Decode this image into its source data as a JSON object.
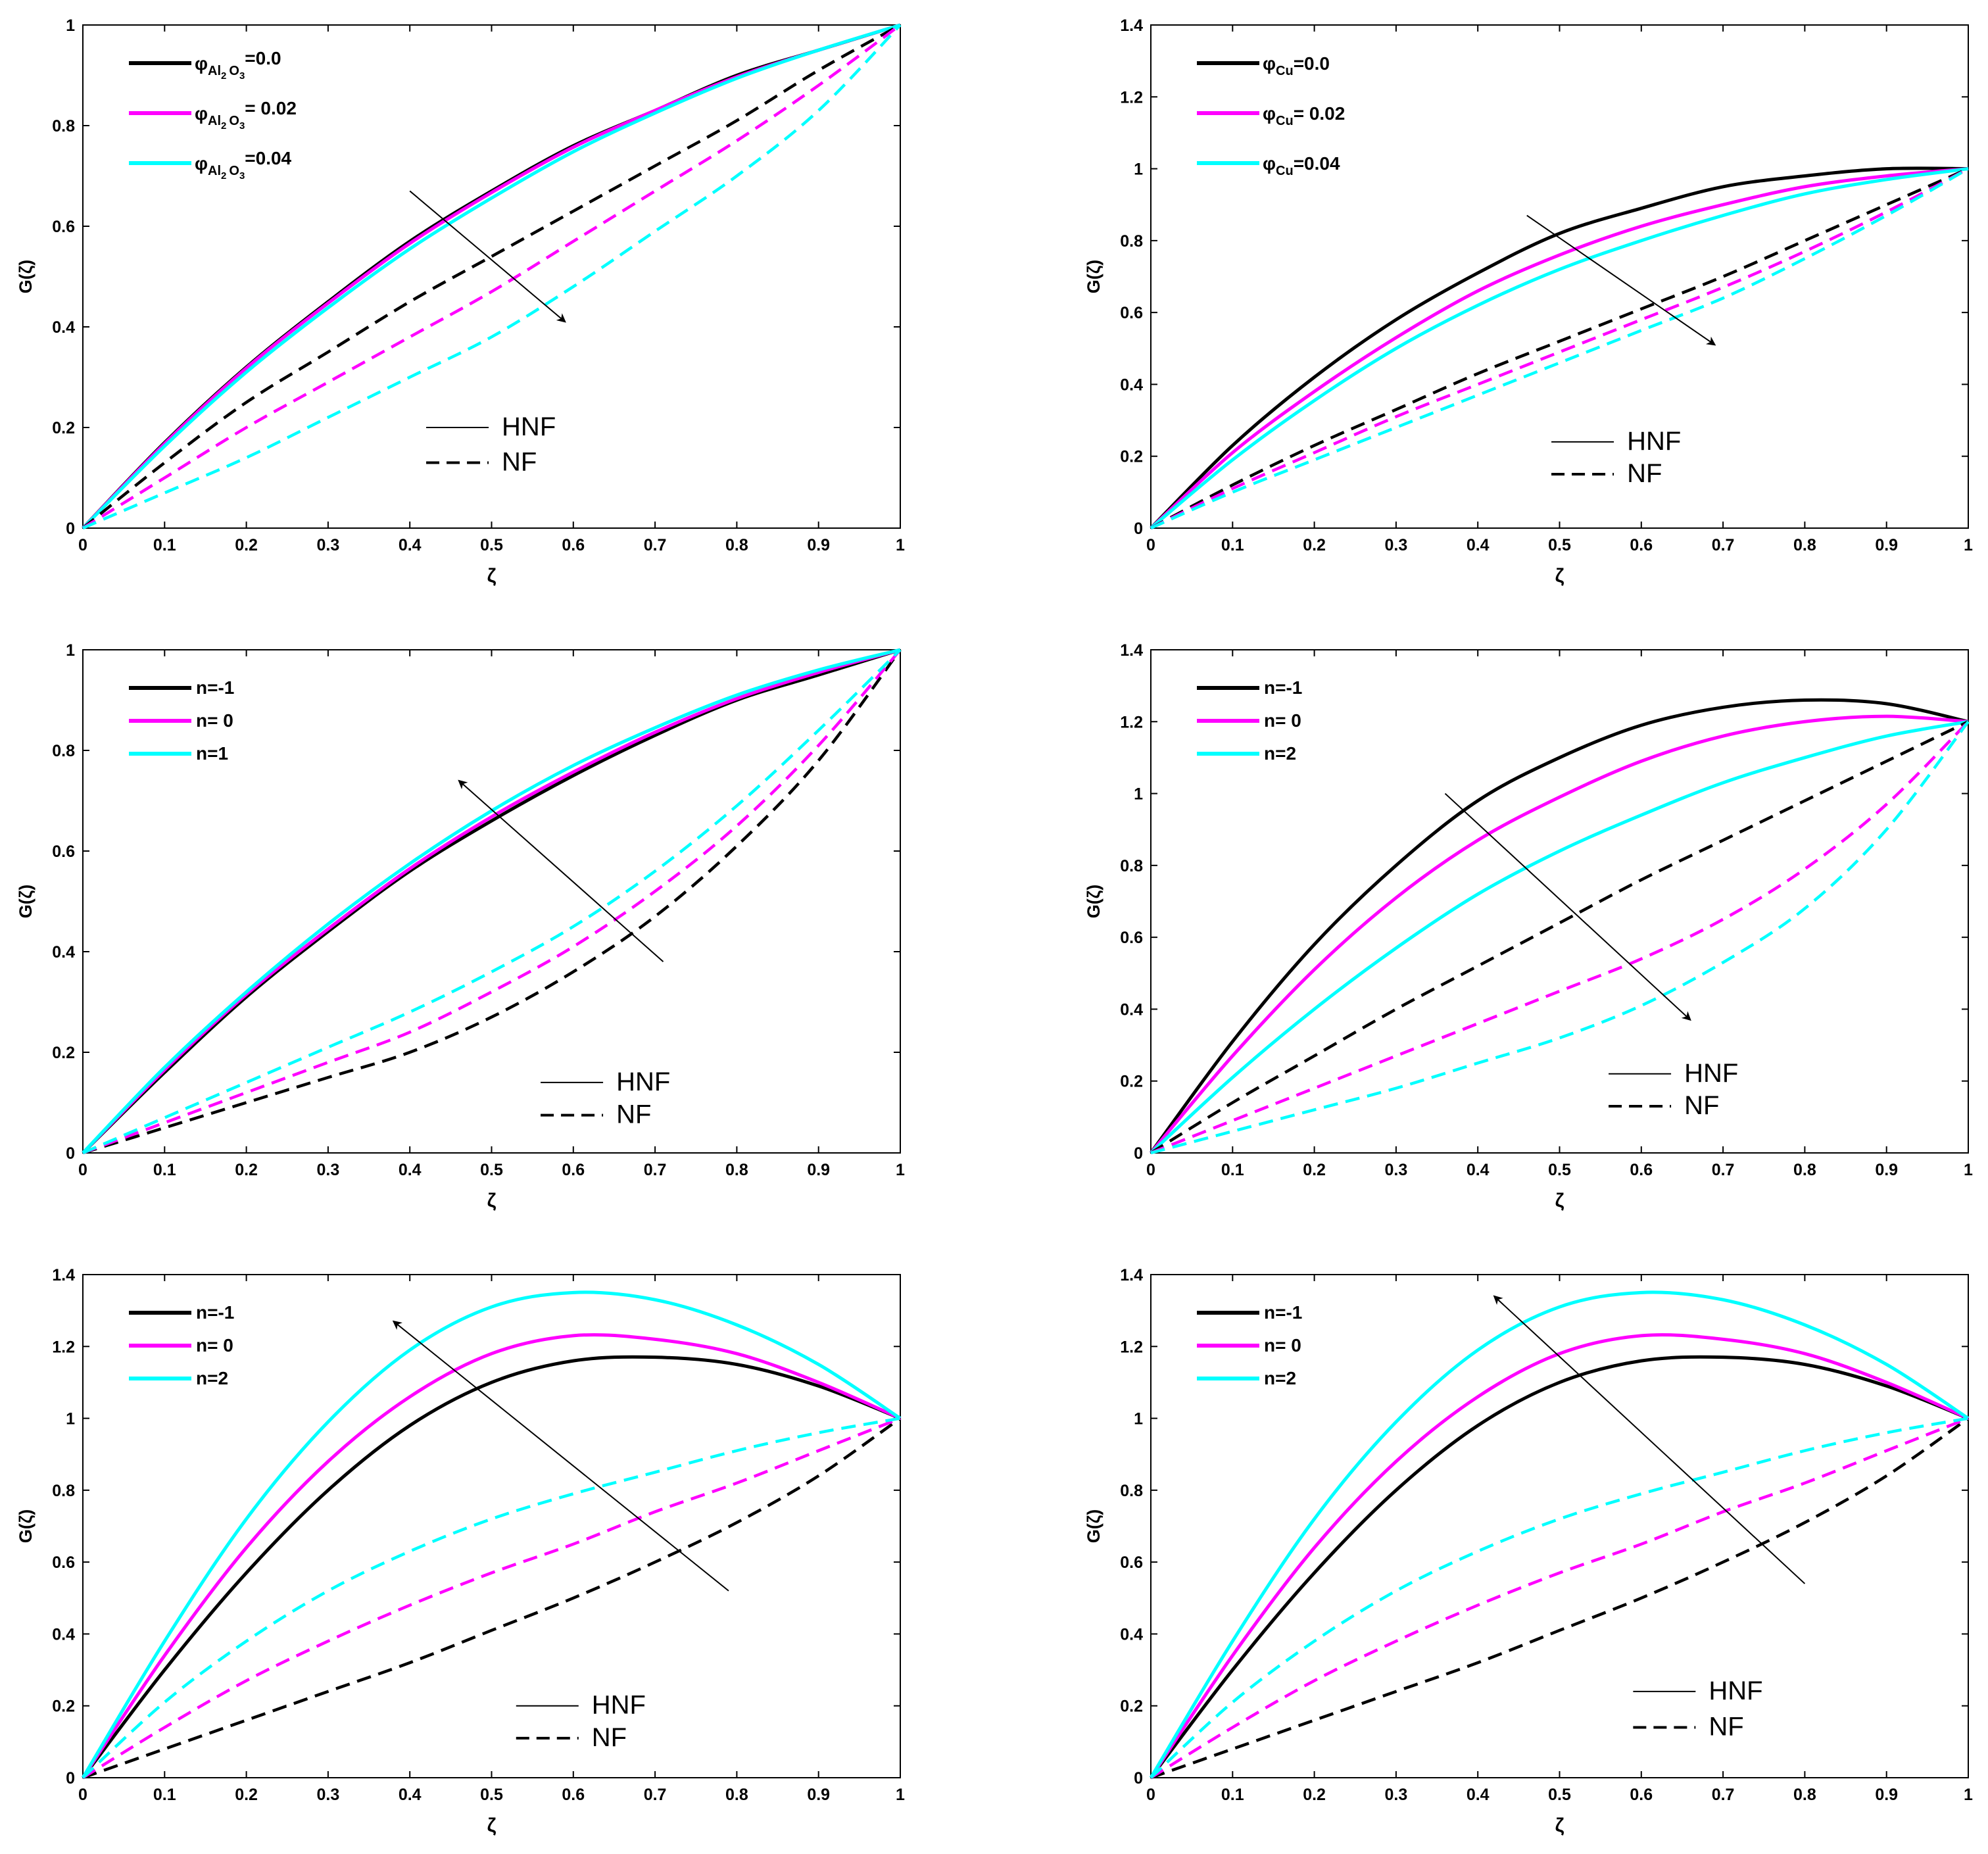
{
  "colors": {
    "black": "#000000",
    "magenta": "#ff00ff",
    "cyan": "#00ffff"
  },
  "common": {
    "xlabel": "ζ",
    "ylabel": "G(ζ)",
    "xticks": [
      "0",
      "0.1",
      "0.2",
      "0.3",
      "0.4",
      "0.5",
      "0.6",
      "0.7",
      "0.8",
      "0.9",
      "1"
    ],
    "hnf_label": "HNF",
    "nf_label": "NF"
  },
  "chart_data": [
    {
      "type": "line",
      "xlim": [
        0,
        1
      ],
      "ylim": [
        0,
        1
      ],
      "yticks": [
        "0",
        "0.2",
        "0.4",
        "0.6",
        "0.8",
        "1"
      ],
      "x": [
        0,
        0.1,
        0.2,
        0.3,
        0.4,
        0.5,
        0.6,
        0.7,
        0.8,
        0.9,
        1
      ],
      "legend": [
        {
          "prefix": "φ",
          "sub": "Al",
          "sub2": "2",
          "sub3": "O",
          "sub4": "3",
          "value": "=0.0",
          "color": "#000000"
        },
        {
          "prefix": "φ",
          "sub": "Al",
          "sub2": "2",
          "sub3": "O",
          "sub4": "3",
          "value": "= 0.02",
          "color": "#ff00ff"
        },
        {
          "prefix": "φ",
          "sub": "Al",
          "sub2": "2",
          "sub3": "O",
          "sub4": "3",
          "value": "=0.04",
          "color": "#00ffff"
        }
      ],
      "series": [
        {
          "name": "HNF φ=0.0",
          "style": "solid",
          "color": "#000000",
          "values": [
            0,
            0.17,
            0.32,
            0.45,
            0.57,
            0.67,
            0.76,
            0.83,
            0.9,
            0.95,
            1
          ]
        },
        {
          "name": "HNF φ=0.02",
          "style": "solid",
          "color": "#ff00ff",
          "values": [
            0,
            0.168,
            0.318,
            0.447,
            0.566,
            0.667,
            0.757,
            0.83,
            0.897,
            0.95,
            1
          ]
        },
        {
          "name": "HNF φ=0.04",
          "style": "solid",
          "color": "#00ffff",
          "values": [
            0,
            0.163,
            0.31,
            0.438,
            0.555,
            0.656,
            0.748,
            0.825,
            0.894,
            0.95,
            1
          ]
        },
        {
          "name": "NF φ=0.0",
          "style": "dashed",
          "color": "#000000",
          "values": [
            0,
            0.13,
            0.25,
            0.35,
            0.45,
            0.54,
            0.63,
            0.72,
            0.81,
            0.91,
            1
          ]
        },
        {
          "name": "NF φ=0.02",
          "style": "dashed",
          "color": "#ff00ff",
          "values": [
            0,
            0.1,
            0.2,
            0.29,
            0.38,
            0.47,
            0.57,
            0.67,
            0.77,
            0.88,
            1
          ]
        },
        {
          "name": "NF φ=0.04",
          "style": "dashed",
          "color": "#00ffff",
          "values": [
            0,
            0.07,
            0.14,
            0.22,
            0.3,
            0.38,
            0.48,
            0.59,
            0.7,
            0.83,
            1
          ]
        }
      ],
      "arrow": {
        "from": [
          0.4,
          0.67
        ],
        "to": [
          0.59,
          0.41
        ]
      },
      "legend_style_pos": {
        "hnf": [
          0.42,
          0.2
        ],
        "nf": [
          0.42,
          0.13
        ]
      }
    },
    {
      "type": "line",
      "xlim": [
        0,
        1
      ],
      "ylim": [
        0,
        1.4
      ],
      "yticks": [
        "0",
        "0.2",
        "0.4",
        "0.6",
        "0.8",
        "1",
        "1.2",
        "1.4"
      ],
      "x": [
        0,
        0.1,
        0.2,
        0.3,
        0.4,
        0.5,
        0.6,
        0.7,
        0.8,
        0.9,
        1
      ],
      "legend": [
        {
          "prefix": "φ",
          "sub": "Cu",
          "value": "=0.0",
          "color": "#000000"
        },
        {
          "prefix": "φ",
          "sub": "Cu",
          "value": "= 0.02",
          "color": "#ff00ff"
        },
        {
          "prefix": "φ",
          "sub": "Cu",
          "value": "=0.04",
          "color": "#00ffff"
        }
      ],
      "series": [
        {
          "name": "HNF φ=0.0",
          "style": "solid",
          "color": "#000000",
          "values": [
            0,
            0.23,
            0.42,
            0.58,
            0.71,
            0.82,
            0.89,
            0.95,
            0.98,
            1.0,
            1
          ]
        },
        {
          "name": "HNF φ=0.02",
          "style": "solid",
          "color": "#ff00ff",
          "values": [
            0,
            0.21,
            0.38,
            0.53,
            0.66,
            0.76,
            0.84,
            0.9,
            0.95,
            0.98,
            1
          ]
        },
        {
          "name": "HNF φ=0.04",
          "style": "solid",
          "color": "#00ffff",
          "values": [
            0,
            0.19,
            0.355,
            0.5,
            0.62,
            0.72,
            0.8,
            0.87,
            0.93,
            0.97,
            1
          ]
        },
        {
          "name": "NF φ=0.0",
          "style": "dashed",
          "color": "#000000",
          "values": [
            0,
            0.12,
            0.23,
            0.33,
            0.43,
            0.52,
            0.61,
            0.7,
            0.8,
            0.9,
            1
          ]
        },
        {
          "name": "NF φ=0.02",
          "style": "dashed",
          "color": "#ff00ff",
          "values": [
            0,
            0.11,
            0.21,
            0.31,
            0.4,
            0.49,
            0.58,
            0.67,
            0.77,
            0.88,
            1
          ]
        },
        {
          "name": "NF φ=0.04",
          "style": "dashed",
          "color": "#00ffff",
          "values": [
            0,
            0.1,
            0.19,
            0.28,
            0.37,
            0.46,
            0.55,
            0.64,
            0.75,
            0.87,
            1
          ]
        }
      ],
      "arrow": {
        "from": [
          0.46,
          0.87
        ],
        "to": [
          0.69,
          0.51
        ]
      },
      "legend_style_pos": {
        "hnf": [
          0.49,
          0.24
        ],
        "nf": [
          0.49,
          0.15
        ]
      }
    },
    {
      "type": "line",
      "xlim": [
        0,
        1
      ],
      "ylim": [
        0,
        1
      ],
      "yticks": [
        "0",
        "0.2",
        "0.4",
        "0.6",
        "0.8",
        "1"
      ],
      "x": [
        0,
        0.1,
        0.2,
        0.3,
        0.4,
        0.5,
        0.6,
        0.7,
        0.8,
        0.9,
        1
      ],
      "legend": [
        {
          "text": "n=-1",
          "color": "#000000"
        },
        {
          "text": "n= 0",
          "color": "#ff00ff"
        },
        {
          "text": "n=1",
          "color": "#00ffff"
        }
      ],
      "series": [
        {
          "name": "HNF n=-1",
          "style": "solid",
          "color": "#000000",
          "values": [
            0,
            0.16,
            0.31,
            0.44,
            0.56,
            0.66,
            0.75,
            0.83,
            0.9,
            0.95,
            1
          ]
        },
        {
          "name": "HNF n=0",
          "style": "solid",
          "color": "#ff00ff",
          "values": [
            0,
            0.165,
            0.315,
            0.445,
            0.565,
            0.668,
            0.757,
            0.836,
            0.903,
            0.955,
            1
          ]
        },
        {
          "name": "HNF n=1",
          "style": "solid",
          "color": "#00ffff",
          "values": [
            0,
            0.17,
            0.32,
            0.455,
            0.575,
            0.68,
            0.77,
            0.845,
            0.91,
            0.96,
            1
          ]
        },
        {
          "name": "NF n=-1",
          "style": "dashed",
          "color": "#000000",
          "values": [
            0,
            0.05,
            0.1,
            0.15,
            0.2,
            0.27,
            0.36,
            0.47,
            0.61,
            0.78,
            1
          ]
        },
        {
          "name": "NF n=0",
          "style": "dashed",
          "color": "#ff00ff",
          "values": [
            0,
            0.06,
            0.12,
            0.18,
            0.24,
            0.32,
            0.41,
            0.52,
            0.65,
            0.81,
            1
          ]
        },
        {
          "name": "NF n=1",
          "style": "dashed",
          "color": "#00ffff",
          "values": [
            0,
            0.07,
            0.14,
            0.21,
            0.28,
            0.36,
            0.45,
            0.56,
            0.69,
            0.84,
            1
          ]
        }
      ],
      "arrow": {
        "from": [
          0.71,
          0.38
        ],
        "to": [
          0.46,
          0.74
        ]
      },
      "legend_style_pos": {
        "hnf": [
          0.56,
          0.14
        ],
        "nf": [
          0.56,
          0.075
        ]
      }
    },
    {
      "type": "line",
      "xlim": [
        0,
        1
      ],
      "ylim": [
        0,
        1.4
      ],
      "yticks": [
        "0",
        "0.2",
        "0.4",
        "0.6",
        "0.8",
        "1",
        "1.2",
        "1.4"
      ],
      "x": [
        0,
        0.1,
        0.2,
        0.3,
        0.4,
        0.5,
        0.6,
        0.7,
        0.8,
        0.9,
        1
      ],
      "legend": [
        {
          "text": "n=-1",
          "color": "#000000"
        },
        {
          "text": "n= 0",
          "color": "#ff00ff"
        },
        {
          "text": "n=2",
          "color": "#00ffff"
        }
      ],
      "series": [
        {
          "name": "HNF n=-1",
          "style": "solid",
          "color": "#000000",
          "values": [
            0,
            0.31,
            0.58,
            0.8,
            0.98,
            1.1,
            1.19,
            1.24,
            1.26,
            1.25,
            1.2
          ]
        },
        {
          "name": "HNF n=0",
          "style": "solid",
          "color": "#ff00ff",
          "values": [
            0,
            0.27,
            0.51,
            0.71,
            0.87,
            0.99,
            1.09,
            1.16,
            1.2,
            1.215,
            1.2
          ]
        },
        {
          "name": "HNF n=2",
          "style": "solid",
          "color": "#00ffff",
          "values": [
            0,
            0.21,
            0.4,
            0.57,
            0.72,
            0.84,
            0.94,
            1.03,
            1.1,
            1.16,
            1.2
          ]
        },
        {
          "name": "NF n=-1",
          "style": "dashed",
          "color": "#000000",
          "values": [
            0,
            0.14,
            0.27,
            0.4,
            0.52,
            0.64,
            0.76,
            0.87,
            0.98,
            1.09,
            1.2
          ]
        },
        {
          "name": "NF n=0",
          "style": "dashed",
          "color": "#ff00ff",
          "values": [
            0,
            0.09,
            0.18,
            0.27,
            0.36,
            0.45,
            0.54,
            0.65,
            0.79,
            0.97,
            1.2
          ]
        },
        {
          "name": "NF n=2",
          "style": "dashed",
          "color": "#00ffff",
          "values": [
            0,
            0.06,
            0.12,
            0.18,
            0.25,
            0.32,
            0.41,
            0.53,
            0.68,
            0.9,
            1.2
          ]
        }
      ],
      "arrow": {
        "from": [
          0.36,
          1.0
        ],
        "to": [
          0.66,
          0.37
        ]
      },
      "legend_style_pos": {
        "hnf": [
          0.56,
          0.22
        ],
        "nf": [
          0.56,
          0.13
        ]
      }
    },
    {
      "type": "line",
      "xlim": [
        0,
        1
      ],
      "ylim": [
        0,
        1.4
      ],
      "yticks": [
        "0",
        "0.2",
        "0.4",
        "0.6",
        "0.8",
        "1",
        "1.2",
        "1.4"
      ],
      "x": [
        0,
        0.1,
        0.2,
        0.3,
        0.4,
        0.5,
        0.6,
        0.7,
        0.8,
        0.9,
        1
      ],
      "legend": [
        {
          "text": "n=-1",
          "color": "#000000"
        },
        {
          "text": "n= 0",
          "color": "#ff00ff"
        },
        {
          "text": "n=2",
          "color": "#00ffff"
        }
      ],
      "series": [
        {
          "name": "HNF n=-1",
          "style": "solid",
          "color": "#000000",
          "values": [
            0,
            0.3,
            0.57,
            0.8,
            0.98,
            1.1,
            1.16,
            1.17,
            1.15,
            1.09,
            1
          ]
        },
        {
          "name": "HNF n=0",
          "style": "solid",
          "color": "#ff00ff",
          "values": [
            0,
            0.34,
            0.64,
            0.88,
            1.06,
            1.18,
            1.23,
            1.22,
            1.18,
            1.1,
            1
          ]
        },
        {
          "name": "HNF n=2",
          "style": "solid",
          "color": "#00ffff",
          "values": [
            0,
            0.38,
            0.72,
            0.99,
            1.19,
            1.31,
            1.35,
            1.33,
            1.26,
            1.15,
            1
          ]
        },
        {
          "name": "NF n=-1",
          "style": "dashed",
          "color": "#000000",
          "values": [
            0,
            0.08,
            0.16,
            0.24,
            0.32,
            0.41,
            0.5,
            0.6,
            0.71,
            0.84,
            1
          ]
        },
        {
          "name": "NF n=0",
          "style": "dashed",
          "color": "#ff00ff",
          "values": [
            0,
            0.14,
            0.27,
            0.38,
            0.48,
            0.57,
            0.65,
            0.74,
            0.82,
            0.91,
            1
          ]
        },
        {
          "name": "NF n=2",
          "style": "dashed",
          "color": "#00ffff",
          "values": [
            0,
            0.21,
            0.38,
            0.52,
            0.63,
            0.72,
            0.79,
            0.85,
            0.91,
            0.96,
            1
          ]
        }
      ],
      "arrow": {
        "from": [
          0.79,
          0.52
        ],
        "to": [
          0.38,
          1.27
        ]
      },
      "legend_style_pos": {
        "hnf": [
          0.53,
          0.2
        ],
        "nf": [
          0.53,
          0.11
        ]
      }
    },
    {
      "type": "line",
      "xlim": [
        0,
        1
      ],
      "ylim": [
        0,
        1.4
      ],
      "yticks": [
        "0",
        "0.2",
        "0.4",
        "0.6",
        "0.8",
        "1",
        "1.2",
        "1.4"
      ],
      "x": [
        0,
        0.1,
        0.2,
        0.3,
        0.4,
        0.5,
        0.6,
        0.7,
        0.8,
        0.9,
        1
      ],
      "legend": [
        {
          "text": "n=-1",
          "color": "#000000"
        },
        {
          "text": "n= 0",
          "color": "#ff00ff"
        },
        {
          "text": "n=2",
          "color": "#00ffff"
        }
      ],
      "series": [
        {
          "name": "HNF n=-1",
          "style": "solid",
          "color": "#000000",
          "values": [
            0,
            0.3,
            0.57,
            0.8,
            0.98,
            1.1,
            1.16,
            1.17,
            1.15,
            1.09,
            1
          ]
        },
        {
          "name": "HNF n=0",
          "style": "solid",
          "color": "#ff00ff",
          "values": [
            0,
            0.34,
            0.64,
            0.88,
            1.06,
            1.18,
            1.23,
            1.22,
            1.18,
            1.1,
            1
          ]
        },
        {
          "name": "HNF n=2",
          "style": "solid",
          "color": "#00ffff",
          "values": [
            0,
            0.38,
            0.72,
            0.99,
            1.19,
            1.31,
            1.35,
            1.33,
            1.26,
            1.15,
            1
          ]
        },
        {
          "name": "NF n=-1",
          "style": "dashed",
          "color": "#000000",
          "values": [
            0,
            0.08,
            0.16,
            0.24,
            0.32,
            0.41,
            0.5,
            0.6,
            0.71,
            0.84,
            1
          ]
        },
        {
          "name": "NF n=0",
          "style": "dashed",
          "color": "#ff00ff",
          "values": [
            0,
            0.14,
            0.27,
            0.38,
            0.48,
            0.57,
            0.65,
            0.74,
            0.82,
            0.91,
            1
          ]
        },
        {
          "name": "NF n=2",
          "style": "dashed",
          "color": "#00ffff",
          "values": [
            0,
            0.21,
            0.38,
            0.52,
            0.63,
            0.72,
            0.79,
            0.85,
            0.91,
            0.96,
            1
          ]
        }
      ],
      "arrow": {
        "from": [
          0.8,
          0.54
        ],
        "to": [
          0.42,
          1.34
        ]
      },
      "legend_style_pos": {
        "hnf": [
          0.59,
          0.24
        ],
        "nf": [
          0.59,
          0.14
        ]
      }
    }
  ]
}
